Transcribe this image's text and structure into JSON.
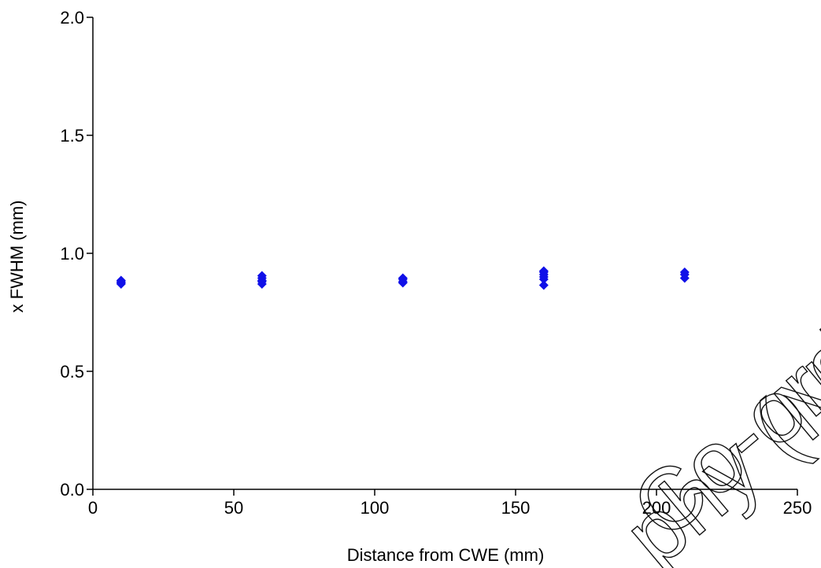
{
  "chart_data": {
    "type": "scatter",
    "title": "",
    "xlabel": "Distance from CWE (mm)",
    "ylabel": "x FWHM (mm)",
    "xlim": [
      0,
      250
    ],
    "ylim": [
      0,
      2.0
    ],
    "xticks": [
      0,
      50,
      100,
      150,
      200,
      250
    ],
    "xtick_labels": [
      "0",
      "50",
      "100",
      "150",
      "200",
      "250"
    ],
    "yticks": [
      0,
      0.5,
      1.0,
      1.5,
      2.0
    ],
    "ytick_labels": [
      "0.0",
      "0.5",
      "1.0",
      "1.5",
      "2.0"
    ],
    "grid": false,
    "legend": "none",
    "marker": "diamond",
    "marker_color": "#1010e8",
    "series": [
      {
        "x": [
          10,
          10,
          10,
          10,
          60,
          60,
          60,
          60,
          60,
          110,
          110,
          110,
          110,
          160,
          160,
          160,
          160,
          160,
          160,
          210,
          210,
          210
        ],
        "y": [
          0.87,
          0.875,
          0.88,
          0.885,
          0.87,
          0.88,
          0.885,
          0.895,
          0.905,
          0.875,
          0.88,
          0.89,
          0.895,
          0.865,
          0.89,
          0.9,
          0.91,
          0.92,
          0.925,
          0.895,
          0.91,
          0.92
        ]
      }
    ]
  },
  "watermark": {
    "line1": "Co-ordinati",
    "line2": "phy (N"
  }
}
